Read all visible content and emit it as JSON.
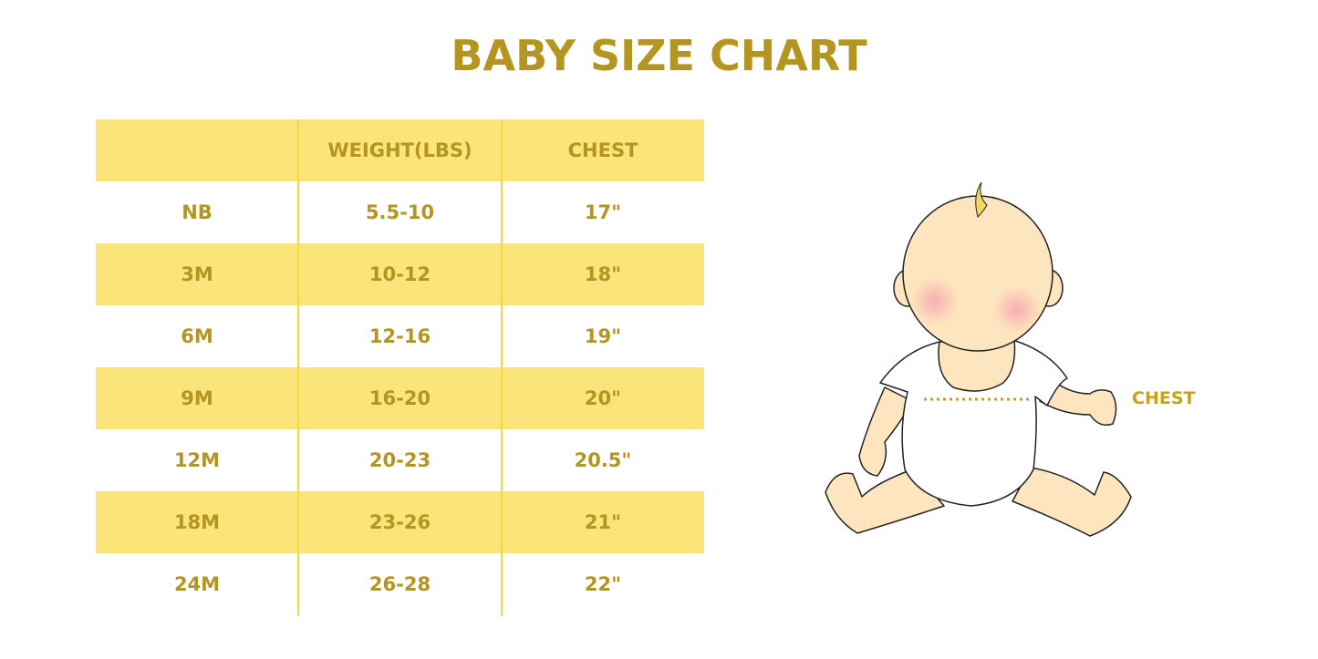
{
  "title": "BABY SIZE CHART",
  "table": {
    "headers": [
      "",
      "WEIGHT(LBS)",
      "CHEST"
    ],
    "rows": [
      [
        "NB",
        "5.5-10",
        "17\""
      ],
      [
        "3M",
        "10-12",
        "18\""
      ],
      [
        "6M",
        "12-16",
        "19\""
      ],
      [
        "9M",
        "16-20",
        "20\""
      ],
      [
        "12M",
        "20-23",
        "20.5\""
      ],
      [
        "18M",
        "23-26",
        "21\""
      ],
      [
        "24M",
        "26-28",
        "22\""
      ]
    ]
  },
  "illustration": {
    "label": "CHEST"
  },
  "colors": {
    "text": "#b4951f",
    "band": "#fbe57b",
    "divider": "#f8d838",
    "skin": "#fde5bf"
  }
}
